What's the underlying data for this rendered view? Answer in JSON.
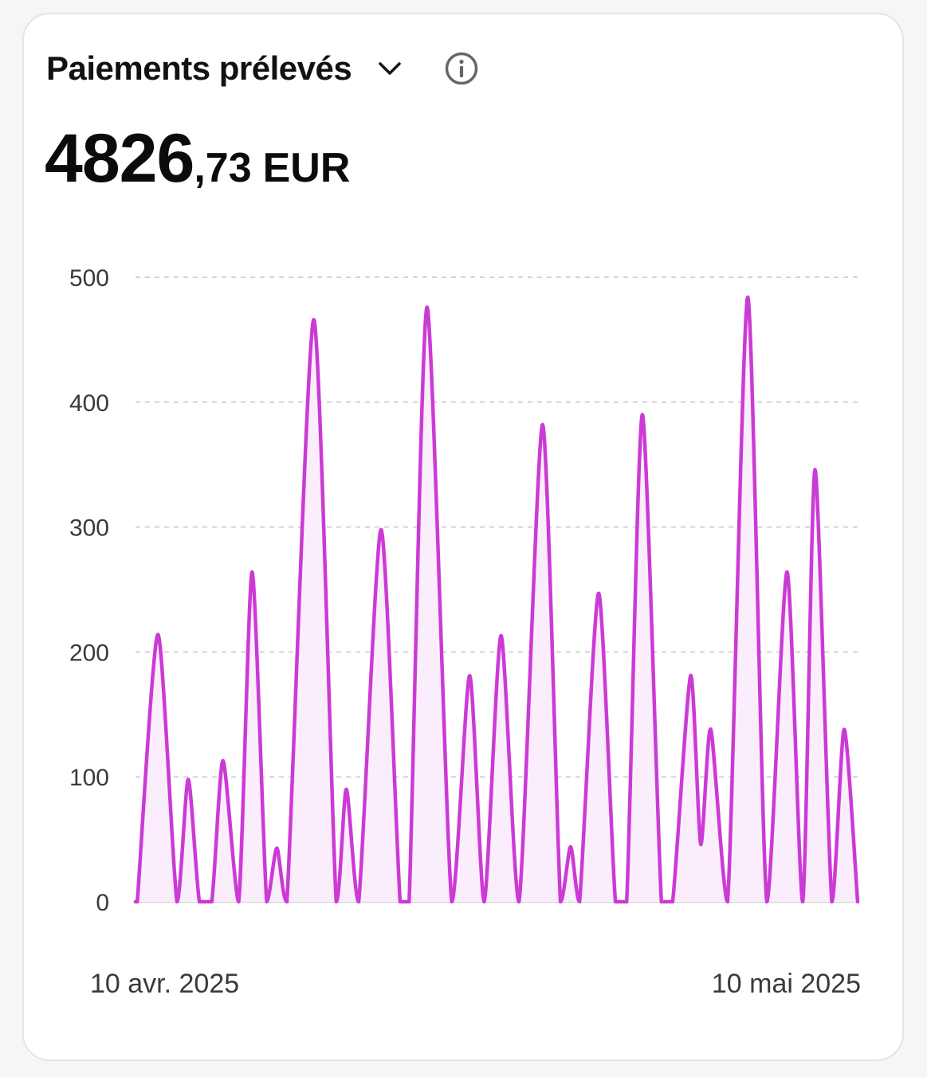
{
  "card": {
    "title": "Paiements prélevés",
    "amount_int": "4826",
    "amount_dec": ",73",
    "currency": "EUR"
  },
  "colors": {
    "line": "#cc3ad6",
    "fill": "#fbeefc",
    "grid": "#d4d4d4",
    "baseline": "#d9d9d9"
  },
  "chart_data": {
    "type": "area",
    "x_labels": [
      "10 avr. 2025",
      "10 mai 2025"
    ],
    "ylim": [
      0,
      500
    ],
    "yticks": [
      "0",
      "100",
      "200",
      "300",
      "400",
      "500"
    ],
    "grid": true,
    "points": [
      [
        0,
        0
      ],
      [
        0.08,
        0
      ],
      [
        1,
        214
      ],
      [
        1.85,
        0
      ],
      [
        2.35,
        98
      ],
      [
        2.85,
        0
      ],
      [
        3.4,
        0
      ],
      [
        3.9,
        113
      ],
      [
        4.6,
        0
      ],
      [
        5.2,
        264
      ],
      [
        5.85,
        0
      ],
      [
        6.3,
        43
      ],
      [
        6.75,
        0
      ],
      [
        7.95,
        466
      ],
      [
        8.95,
        0
      ],
      [
        9.4,
        90
      ],
      [
        9.95,
        0
      ],
      [
        10.95,
        298
      ],
      [
        11.8,
        0
      ],
      [
        12.2,
        0
      ],
      [
        13.0,
        476
      ],
      [
        14.1,
        0
      ],
      [
        14.9,
        181
      ],
      [
        15.55,
        0
      ],
      [
        16.3,
        213
      ],
      [
        17.1,
        0
      ],
      [
        18.15,
        382
      ],
      [
        18.95,
        0
      ],
      [
        19.4,
        44
      ],
      [
        19.8,
        0
      ],
      [
        20.65,
        247
      ],
      [
        21.4,
        0
      ],
      [
        21.9,
        0
      ],
      [
        22.6,
        390
      ],
      [
        23.45,
        0
      ],
      [
        23.95,
        0
      ],
      [
        24.75,
        181
      ],
      [
        25.2,
        46
      ],
      [
        25.65,
        138
      ],
      [
        26.4,
        0
      ],
      [
        27.3,
        484
      ],
      [
        28.15,
        0
      ],
      [
        29.05,
        264
      ],
      [
        29.75,
        0
      ],
      [
        30.3,
        346
      ],
      [
        31.05,
        0
      ],
      [
        31.6,
        138
      ],
      [
        32.2,
        0
      ]
    ]
  }
}
